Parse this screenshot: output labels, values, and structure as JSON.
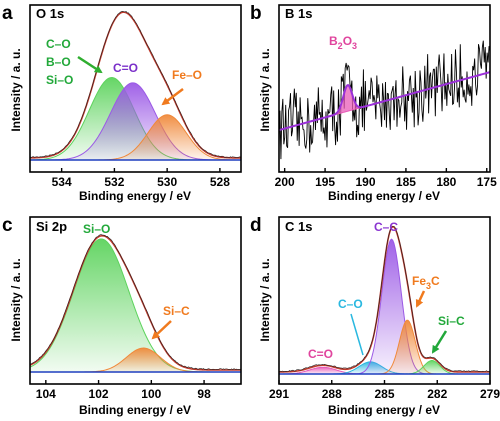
{
  "chart_data": [
    {
      "type": "area",
      "panel": "a",
      "title": "O 1s",
      "xlabel": "Binding energy / eV",
      "ylabel": "Intensity / a. u.",
      "xlim": [
        535.2,
        527.2
      ],
      "ylim": [
        0,
        1.12
      ],
      "x_reversed": true,
      "xticks": [
        534,
        532,
        530,
        528
      ],
      "components": [
        {
          "name": "C–O",
          "center": 532.1,
          "sigma": 0.85,
          "height": 0.62,
          "color": "#5dd35d"
        },
        {
          "name": "B–O",
          "center": 532.1,
          "sigma": 0.85,
          "height": 0.62,
          "color": "#5dd35d"
        },
        {
          "name": "Si–O",
          "center": 532.1,
          "sigma": 0.85,
          "height": 0.62,
          "color": "#5dd35d"
        },
        {
          "name": "C=O",
          "center": 531.3,
          "sigma": 0.85,
          "height": 0.58,
          "color": "#9b59e6"
        },
        {
          "name": "Fe–O",
          "center": 530.0,
          "sigma": 0.72,
          "height": 0.34,
          "color": "#f0893a"
        }
      ],
      "envelope_color": "#c0392b",
      "baseline_color": "#1f3fbf"
    },
    {
      "type": "line",
      "panel": "b",
      "title": "B 1s",
      "xlabel": "Binding energy / eV",
      "ylabel": "Intensity / a. u.",
      "xlim": [
        200.7,
        174.6
      ],
      "ylim": [
        0,
        1
      ],
      "x_reversed": true,
      "xticks": [
        200,
        195,
        190,
        185,
        180,
        175
      ],
      "components": [
        {
          "name": "B2O3",
          "center": 192.2,
          "sigma": 0.55,
          "height": 0.18,
          "color": "#e85bb8"
        }
      ],
      "fit_color": "#9b30d9",
      "raw_color": "#000000"
    },
    {
      "type": "area",
      "panel": "c",
      "title": "Si 2p",
      "xlabel": "Binding energy / eV",
      "ylabel": "Intensity / a. u.",
      "xlim": [
        104.6,
        96.6
      ],
      "ylim": [
        0,
        1.12
      ],
      "x_reversed": true,
      "xticks": [
        104,
        102,
        100,
        98
      ],
      "components": [
        {
          "name": "Si–O",
          "center": 101.9,
          "sigma": 1.05,
          "height": 1.0,
          "color": "#5dd35d"
        },
        {
          "name": "Si–C",
          "center": 100.3,
          "sigma": 0.65,
          "height": 0.18,
          "color": "#f0893a"
        }
      ],
      "envelope_color": "#c0392b",
      "baseline_color": "#1f3fbf"
    },
    {
      "type": "area",
      "panel": "d",
      "title": "C 1s",
      "xlabel": "Binding energy / eV",
      "ylabel": "Intensity / a. u.",
      "xlim": [
        291,
        279
      ],
      "ylim": [
        0,
        1.12
      ],
      "x_reversed": true,
      "xticks": [
        291,
        288,
        285,
        282,
        279
      ],
      "components": [
        {
          "name": "C=O",
          "center": 288.5,
          "sigma": 0.75,
          "height": 0.05,
          "color": "#e85bb8"
        },
        {
          "name": "C–O",
          "center": 285.8,
          "sigma": 0.65,
          "height": 0.09,
          "color": "#2ab8e0"
        },
        {
          "name": "C–C",
          "center": 284.6,
          "sigma": 0.55,
          "height": 1.0,
          "color": "#9b59e6"
        },
        {
          "name": "Fe3C",
          "center": 283.7,
          "sigma": 0.45,
          "height": 0.4,
          "color": "#f0893a"
        },
        {
          "name": "Si–C",
          "center": 282.3,
          "sigma": 0.45,
          "height": 0.1,
          "color": "#5dd35d"
        }
      ],
      "envelope_color": "#c0392b",
      "baseline_color": "#1f3fbf"
    }
  ],
  "labels": {
    "a": {
      "letter": "a",
      "title": "O 1s",
      "ann_co": "C–O",
      "ann_bo": "B–O",
      "ann_sio": "Si–O",
      "ann_c_o": "C=O",
      "ann_feo": "Fe–O"
    },
    "b": {
      "letter": "b",
      "title": "B 1s",
      "ann_b": "B",
      "ann_sub1": "2",
      "ann_o": "O",
      "ann_sub2": "3"
    },
    "c": {
      "letter": "c",
      "title": "Si 2p",
      "ann_sio": "Si–O",
      "ann_sic": "Si–C"
    },
    "d": {
      "letter": "d",
      "title": "C 1s",
      "ann_cc": "C–C",
      "ann_fe": "Fe",
      "ann_sub3": "3",
      "ann_c": "C",
      "ann_co": "C–O",
      "ann_c_o": "C=O",
      "ann_sic": "Si–C"
    },
    "xlabel": "Binding energy / eV",
    "ylabel": "Intensity / a. u."
  }
}
